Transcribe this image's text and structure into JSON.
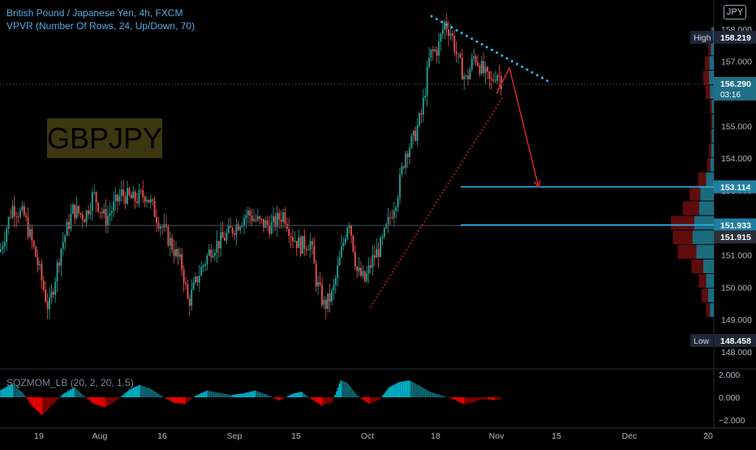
{
  "header": {
    "title": "British Pound / Japanese Yen, 4h, FXCM",
    "indicator": "VPVR (Number Of Rows, 24, Up/Down, 70)"
  },
  "symbol_label": "GBPJPY",
  "currency": "JPY",
  "oscillator_label": "SQZMOM_LB (20, 2, 20, 1.5)",
  "colors": {
    "background": "#000000",
    "bull": "#26a69a",
    "bear": "#ef5350",
    "accent": "#29b6f6",
    "annotation_red": "#c62828",
    "squeeze_pos": "#00bcd4",
    "squeeze_neg": "#ff0000"
  },
  "chart_data": {
    "type": "candlestick",
    "x_ticks": [
      "19",
      "Aug",
      "16",
      "Sep",
      "15",
      "Oct",
      "18",
      "Nov",
      "15",
      "Dec",
      "20"
    ],
    "y_ticks": [
      "158.000",
      "157.000",
      "156.000",
      "155.000",
      "154.000",
      "153.000",
      "152.000",
      "151.000",
      "150.000",
      "149.000",
      "148.000"
    ],
    "ylim": [
      147.85,
      158.6
    ],
    "high": {
      "label": "High",
      "value": "158.219"
    },
    "low": {
      "label": "Low",
      "value": "148.458"
    },
    "current": {
      "value": "156.290",
      "countdown": "03:16"
    },
    "levels": [
      {
        "label": "153.114",
        "value": 153.114
      },
      {
        "label": "151.933",
        "value": 151.933
      }
    ],
    "secondary_level": {
      "label": "151.915",
      "value": 151.915
    },
    "close_path": [
      [
        0,
        151.1
      ],
      [
        15,
        152.5
      ],
      [
        30,
        152.2
      ],
      [
        45,
        150.9
      ],
      [
        60,
        149.3
      ],
      [
        75,
        151.2
      ],
      [
        90,
        152.4
      ],
      [
        105,
        152.2
      ],
      [
        115,
        152.9
      ],
      [
        130,
        152.1
      ],
      [
        150,
        152.9
      ],
      [
        165,
        152.7
      ],
      [
        180,
        152.9
      ],
      [
        195,
        152.1
      ],
      [
        210,
        151.4
      ],
      [
        225,
        150.6
      ],
      [
        232,
        149.5
      ],
      [
        245,
        150.4
      ],
      [
        260,
        151.2
      ],
      [
        275,
        151.5
      ],
      [
        290,
        151.9
      ],
      [
        305,
        152.3
      ],
      [
        320,
        152.0
      ],
      [
        335,
        151.9
      ],
      [
        350,
        152.3
      ],
      [
        360,
        151.6
      ],
      [
        370,
        151.3
      ],
      [
        383,
        151.4
      ],
      [
        390,
        150.2
      ],
      [
        400,
        149.4
      ],
      [
        410,
        149.8
      ],
      [
        420,
        151.0
      ],
      [
        430,
        152.2
      ],
      [
        440,
        150.5
      ],
      [
        450,
        150.2
      ],
      [
        460,
        150.9
      ],
      [
        470,
        151.3
      ],
      [
        480,
        152.1
      ],
      [
        490,
        152.9
      ],
      [
        500,
        154.2
      ],
      [
        510,
        154.6
      ],
      [
        520,
        155.4
      ],
      [
        530,
        157.2
      ],
      [
        540,
        157.4
      ],
      [
        548,
        158.2
      ],
      [
        556,
        157.9
      ],
      [
        565,
        157.0
      ],
      [
        575,
        156.4
      ],
      [
        585,
        157.2
      ],
      [
        595,
        156.7
      ],
      [
        605,
        156.3
      ],
      [
        612,
        156.7
      ],
      [
        620,
        156.3
      ]
    ],
    "volume_profile": [
      {
        "price": 157.85,
        "up": 4,
        "down": 3
      },
      {
        "price": 157.4,
        "up": 6,
        "down": 5
      },
      {
        "price": 156.95,
        "up": 9,
        "down": 9
      },
      {
        "price": 156.5,
        "up": 10,
        "down": 12
      },
      {
        "price": 156.05,
        "up": 8,
        "down": 9
      },
      {
        "price": 155.6,
        "up": 4,
        "down": 4
      },
      {
        "price": 155.15,
        "up": 3,
        "down": 3
      },
      {
        "price": 154.7,
        "up": 4,
        "down": 3
      },
      {
        "price": 154.25,
        "up": 5,
        "down": 5
      },
      {
        "price": 153.8,
        "up": 7,
        "down": 7
      },
      {
        "price": 153.35,
        "up": 16,
        "down": 16
      },
      {
        "price": 152.9,
        "up": 28,
        "down": 22
      },
      {
        "price": 152.45,
        "up": 30,
        "down": 34
      },
      {
        "price": 152.0,
        "up": 40,
        "down": 48
      },
      {
        "price": 151.55,
        "up": 44,
        "down": 40
      },
      {
        "price": 151.1,
        "up": 36,
        "down": 38
      },
      {
        "price": 150.65,
        "up": 22,
        "down": 24
      },
      {
        "price": 150.2,
        "up": 16,
        "down": 15
      },
      {
        "price": 149.75,
        "up": 12,
        "down": 13
      },
      {
        "price": 149.3,
        "up": 8,
        "down": 8
      }
    ],
    "annotations": {
      "resistance_dotted": [
        [
          532,
          158.4
        ],
        [
          678,
          156.35
        ]
      ],
      "support_dotted": [
        [
          457,
          149.4
        ],
        [
          620,
          155.9
        ]
      ],
      "arrow_up": [
        [
          612,
          156.0
        ],
        [
          628,
          156.8
        ]
      ],
      "arrow_down": [
        [
          628,
          156.8
        ],
        [
          664,
          153.1
        ]
      ]
    },
    "oscillator": {
      "y_ticks": [
        "2.000",
        "0.000",
        "-2.000"
      ],
      "ylim": [
        -2.3,
        2.3
      ],
      "path": [
        [
          0,
          0.6
        ],
        [
          15,
          1.2
        ],
        [
          28,
          0.4
        ],
        [
          40,
          -0.8
        ],
        [
          52,
          -1.6
        ],
        [
          64,
          -0.7
        ],
        [
          78,
          0.3
        ],
        [
          92,
          0.9
        ],
        [
          104,
          0.1
        ],
        [
          116,
          -0.6
        ],
        [
          130,
          -0.9
        ],
        [
          145,
          -0.2
        ],
        [
          160,
          0.7
        ],
        [
          172,
          1.1
        ],
        [
          185,
          0.8
        ],
        [
          200,
          0.1
        ],
        [
          215,
          -0.5
        ],
        [
          228,
          -0.6
        ],
        [
          240,
          0.1
        ],
        [
          255,
          0.6
        ],
        [
          270,
          0.4
        ],
        [
          285,
          0.2
        ],
        [
          300,
          0.35
        ],
        [
          315,
          0.6
        ],
        [
          330,
          0.2
        ],
        [
          345,
          -0.3
        ],
        [
          360,
          0.3
        ],
        [
          372,
          0.5
        ],
        [
          385,
          -0.2
        ],
        [
          397,
          -0.75
        ],
        [
          410,
          -0.4
        ],
        [
          420,
          1.5
        ],
        [
          428,
          1.3
        ],
        [
          440,
          0.2
        ],
        [
          455,
          -0.6
        ],
        [
          468,
          -0.2
        ],
        [
          480,
          0.9
        ],
        [
          492,
          1.35
        ],
        [
          505,
          1.5
        ],
        [
          518,
          1.0
        ],
        [
          530,
          0.5
        ],
        [
          545,
          0.15
        ],
        [
          560,
          -0.2
        ],
        [
          572,
          -0.6
        ],
        [
          582,
          -0.5
        ],
        [
          592,
          -0.2
        ],
        [
          600,
          -0.15
        ],
        [
          610,
          -0.25
        ],
        [
          618,
          -0.2
        ]
      ]
    }
  }
}
